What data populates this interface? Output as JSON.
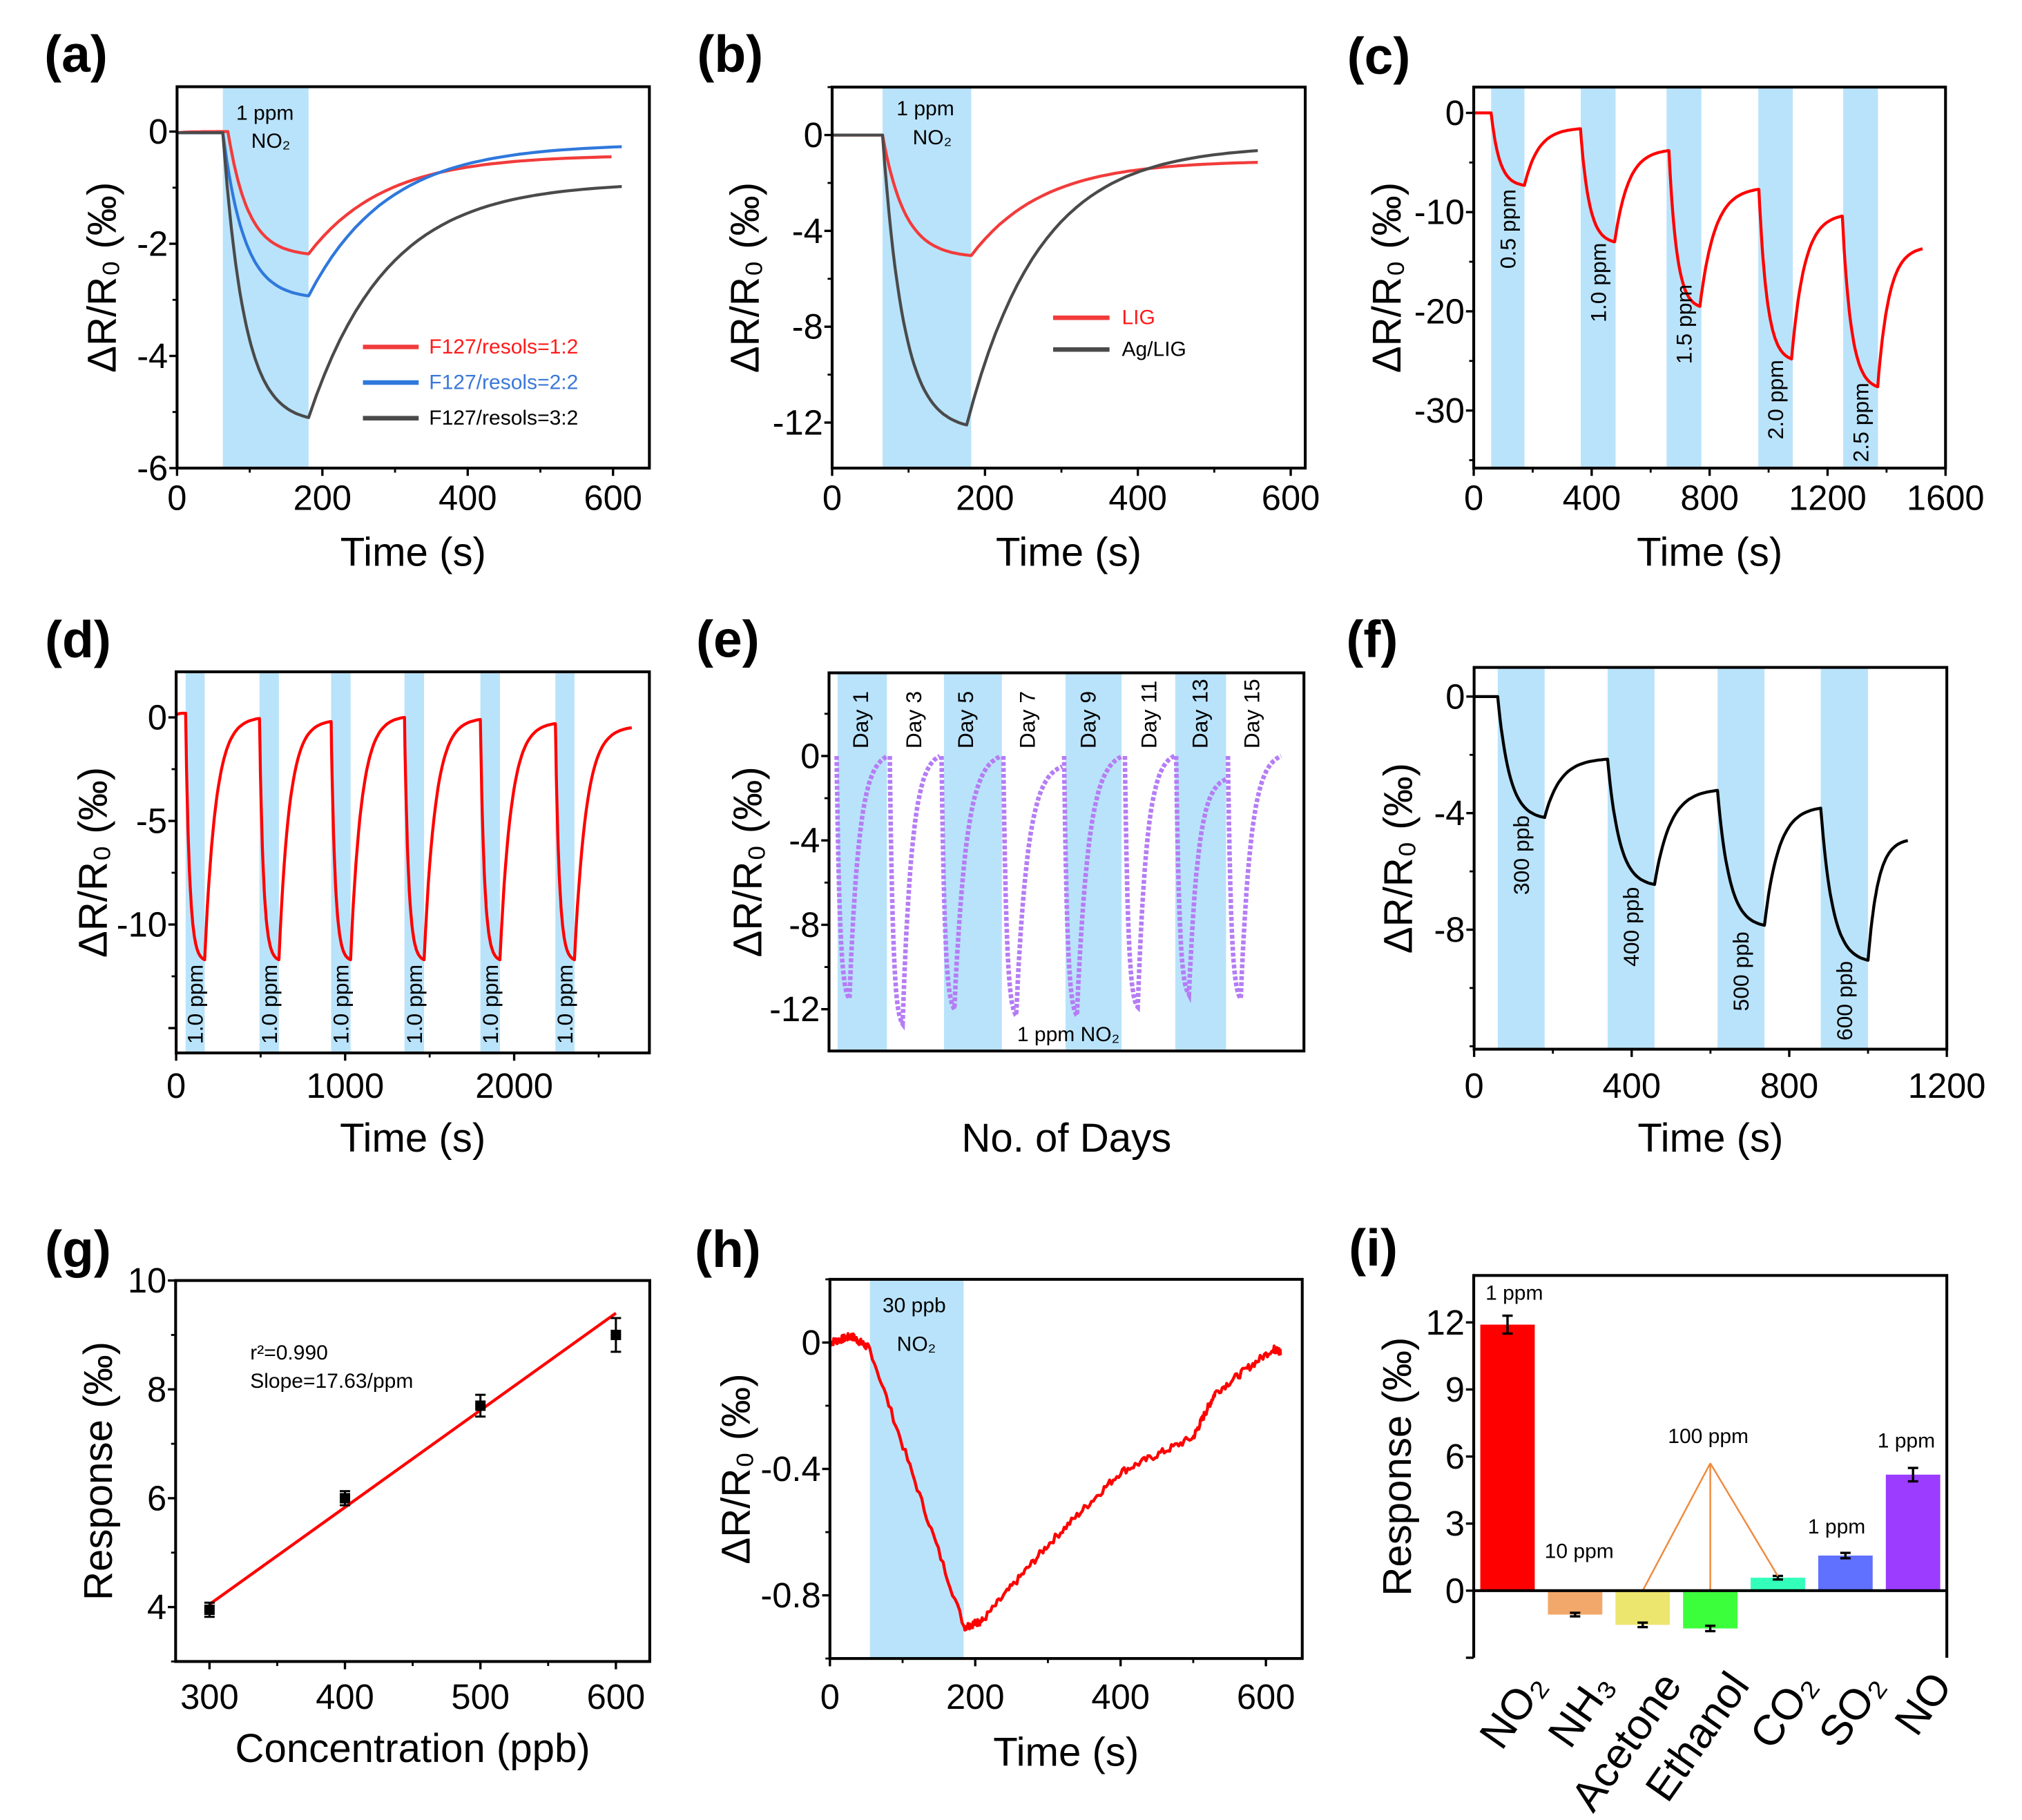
{
  "chart_data": [
    {
      "panel": "(a)",
      "type": "line",
      "xlabel": "Time (s)",
      "ylabel": "ΔR/R₀ (‰)",
      "xlim": [
        0,
        650
      ],
      "ylim": [
        -6,
        0.8
      ],
      "xticks": [
        0,
        200,
        400,
        600
      ],
      "yticks": [
        0,
        -2,
        -4,
        -6
      ],
      "grid": false,
      "legend_placement": "center-right",
      "shaded": [
        {
          "from": 63,
          "to": 181
        }
      ],
      "annotations": [
        {
          "text": "1 ppm",
          "x": 121,
          "y": 0.33
        },
        {
          "text": "NO₂",
          "x": 129,
          "y": -0.17
        }
      ],
      "series": [
        {
          "name": "F127/resols=1:2",
          "color": "#f23b3b",
          "legend_color": "#ff1a1a",
          "points": [
            [
              0,
              -0.02
            ],
            [
              70,
              0
            ],
            [
              181,
              -2.18
            ],
            [
              598,
              -0.45
            ]
          ]
        },
        {
          "name": "F127/resols=2:2",
          "color": "#2f78dc",
          "legend_color": "#3a78d8",
          "points": [
            [
              0,
              -0.02
            ],
            [
              63,
              -0.02
            ],
            [
              181,
              -2.93
            ],
            [
              612,
              -0.27
            ]
          ]
        },
        {
          "name": "F127/resols=3:2",
          "color": "#4a4a4a",
          "legend_color": "#000000",
          "points": [
            [
              0,
              -0.02
            ],
            [
              63,
              -0.02
            ],
            [
              181,
              -5.1
            ],
            [
              612,
              -0.98
            ]
          ]
        }
      ]
    },
    {
      "panel": "(b)",
      "type": "line",
      "xlabel": "Time (s)",
      "ylabel": "ΔR/R₀ (‰)",
      "xlim": [
        0,
        619
      ],
      "ylim": [
        -13.9,
        2
      ],
      "xticks": [
        0,
        200,
        400,
        600
      ],
      "yticks": [
        0,
        -4,
        -8,
        -12
      ],
      "grid": false,
      "legend_placement": "center-right",
      "shaded": [
        {
          "from": 66,
          "to": 182
        }
      ],
      "annotations": [
        {
          "text": "1 ppm",
          "x": 122,
          "y": 1.09
        },
        {
          "text": "NO₂",
          "x": 131,
          "y": -0.11
        }
      ],
      "series": [
        {
          "name": "LIG",
          "color": "#f23b3b",
          "legend_color": "#ff1a1a",
          "points": [
            [
              0,
              0
            ],
            [
              66,
              0
            ],
            [
              182,
              -5.03
            ],
            [
              557,
              -1.14
            ]
          ]
        },
        {
          "name": "Ag/LIG",
          "color": "#4a4a4a",
          "legend_color": "#000000",
          "points": [
            [
              0,
              0
            ],
            [
              66,
              0
            ],
            [
              176,
              -12.1
            ],
            [
              557,
              -0.65
            ]
          ]
        }
      ]
    },
    {
      "panel": "(c)",
      "type": "line",
      "xlabel": "Time (s)",
      "ylabel": "ΔR/R₀ (‰)",
      "xlim": [
        0,
        1600
      ],
      "ylim": [
        -35.8,
        2.6
      ],
      "xticks": [
        0,
        400,
        800,
        1200,
        1600
      ],
      "yticks": [
        0,
        -10,
        -20,
        -30
      ],
      "grid": false,
      "shaded": [
        {
          "from": 59,
          "to": 172,
          "label": "0.5 ppm",
          "label_y": -11.7
        },
        {
          "from": 363,
          "to": 481,
          "label": "1.0 ppm",
          "label_y": -17.1
        },
        {
          "from": 654,
          "to": 772,
          "label": "1.5 ppm",
          "label_y": -21.3
        },
        {
          "from": 965,
          "to": 1082,
          "label": "2.0 ppm",
          "label_y": -28.9
        },
        {
          "from": 1253,
          "to": 1371,
          "label": "2.5 ppm",
          "label_y": -31.2
        }
      ],
      "series": [
        {
          "color": "#ff0000",
          "points": [
            [
              0,
              0
            ],
            [
              59,
              0
            ],
            [
              172,
              -7.3
            ],
            [
              362,
              -1.6
            ],
            [
              478,
              -13.0
            ],
            [
              662,
              -3.8
            ],
            [
              767,
              -19.5
            ],
            [
              967,
              -7.7
            ],
            [
              1078,
              -24.8
            ],
            [
              1250,
              -10.4
            ],
            [
              1370,
              -27.6
            ],
            [
              1522,
              -13.7
            ]
          ]
        }
      ]
    },
    {
      "panel": "(d)",
      "type": "line",
      "xlabel": "Time (s)",
      "ylabel": "ΔR/R₀ (‰)",
      "xlim": [
        0,
        2800
      ],
      "ylim": [
        -16.2,
        2.2
      ],
      "xticks": [
        0,
        1000,
        2000
      ],
      "yticks": [
        0,
        -5,
        -10
      ],
      "grid": false,
      "shaded": [
        {
          "from": 56,
          "to": 169,
          "label": "1.0 ppm",
          "label_y": -13.85
        },
        {
          "from": 493,
          "to": 608,
          "label": "1.0 ppm",
          "label_y": -13.85
        },
        {
          "from": 917,
          "to": 1032,
          "label": "1.0 ppm",
          "label_y": -13.85
        },
        {
          "from": 1351,
          "to": 1467,
          "label": "1.0 ppm",
          "label_y": -13.85
        },
        {
          "from": 1800,
          "to": 1916,
          "label": "1.0 ppm",
          "label_y": -13.85
        },
        {
          "from": 2244,
          "to": 2357,
          "label": "1.0 ppm",
          "label_y": -13.85
        }
      ],
      "series": [
        {
          "color": "#ff0000",
          "points": [
            [
              0,
              0.1
            ],
            [
              56,
              0.2
            ],
            [
              169,
              -11.7
            ],
            [
              493,
              -0.05
            ],
            [
              608,
              -11.7
            ],
            [
              917,
              -0.2
            ],
            [
              1032,
              -11.7
            ],
            [
              1351,
              0
            ],
            [
              1467,
              -11.7
            ],
            [
              1800,
              -0.1
            ],
            [
              1916,
              -11.7
            ],
            [
              2244,
              -0.3
            ],
            [
              2357,
              -11.7
            ],
            [
              2696,
              -0.5
            ]
          ]
        }
      ]
    },
    {
      "panel": "(e)",
      "type": "line",
      "xlabel": "No. of Days",
      "ylabel": "ΔR/R₀ (‰)",
      "xlim": [
        0,
        10
      ],
      "ylim": [
        -13.98,
        3.94
      ],
      "xticks": [],
      "yticks": [
        0,
        -4,
        -8,
        -12
      ],
      "grid": false,
      "line_style": "dotted",
      "shaded": [
        {
          "from": 0.18,
          "to": 1.22
        },
        {
          "from": 2.42,
          "to": 3.64
        },
        {
          "from": 4.98,
          "to": 6.16
        },
        {
          "from": 7.29,
          "to": 8.36
        }
      ],
      "annotations": [
        {
          "text": "1 ppm NO₂",
          "x": 5.04,
          "y": -13.2
        }
      ],
      "days": [
        {
          "label": "Day 1",
          "start": 0.16,
          "min": -11.5,
          "end_value": 0
        },
        {
          "label": "Day 3",
          "start": 1.28,
          "min": -12.7,
          "end_value": 0
        },
        {
          "label": "Day 5",
          "start": 2.37,
          "min": -12.0,
          "end_value": 0
        },
        {
          "label": "Day 7",
          "start": 3.67,
          "min": -12.3,
          "end_value": -0.5
        },
        {
          "label": "Day 9",
          "start": 4.95,
          "min": -12.3,
          "end_value": 0
        },
        {
          "label": "Day 11",
          "start": 6.23,
          "min": -11.9,
          "end_value": 0
        },
        {
          "label": "Day 13",
          "start": 7.31,
          "min": -11.3,
          "end_value": -1.1
        },
        {
          "label": "Day 15",
          "start": 8.4,
          "min": -11.5,
          "end_value": 0
        }
      ],
      "series_end": 9.52,
      "series": [
        {
          "color": "#b57cf5"
        }
      ]
    },
    {
      "panel": "(f)",
      "type": "line",
      "xlabel": "Time (s)",
      "ylabel": "ΔR/R₀ (‰)",
      "xlim": [
        0,
        1200
      ],
      "ylim": [
        -12.1,
        1.0
      ],
      "xticks": [
        0,
        400,
        800,
        1200
      ],
      "yticks": [
        0,
        -4,
        -8
      ],
      "grid": false,
      "shaded": [
        {
          "from": 60,
          "to": 179,
          "label": "300 ppb",
          "label_y": -5.44
        },
        {
          "from": 339,
          "to": 458,
          "label": "400 ppb",
          "label_y": -7.9
        },
        {
          "from": 618,
          "to": 737,
          "label": "500 ppb",
          "label_y": -9.43
        },
        {
          "from": 880,
          "to": 1000,
          "label": "600 ppb",
          "label_y": -10.44
        }
      ],
      "series": [
        {
          "color": "#000000",
          "points": [
            [
              0,
              0
            ],
            [
              60,
              0
            ],
            [
              179,
              -4.15
            ],
            [
              339,
              -2.15
            ],
            [
              458,
              -6.45
            ],
            [
              618,
              -3.22
            ],
            [
              737,
              -7.85
            ],
            [
              880,
              -3.83
            ],
            [
              1000,
              -9.05
            ],
            [
              1101,
              -4.94
            ]
          ]
        }
      ]
    },
    {
      "panel": "(g)",
      "type": "scatter",
      "xlabel": "Concentration (ppb)",
      "ylabel": "Response (‰)",
      "xlim": [
        275,
        625
      ],
      "ylim": [
        3,
        10
      ],
      "xticks": [
        300,
        400,
        500,
        600
      ],
      "yticks": [
        4,
        6,
        8,
        10
      ],
      "grid": false,
      "points": [
        {
          "x": 300,
          "y": 3.95,
          "err": 0.13
        },
        {
          "x": 400,
          "y": 6.0,
          "err": 0.13
        },
        {
          "x": 500,
          "y": 7.7,
          "err": 0.2
        },
        {
          "x": 600,
          "y": 9.0,
          "err": 0.31
        }
      ],
      "fit": {
        "x": [
          300,
          600
        ],
        "y": [
          4.05,
          9.4
        ],
        "color": "#ff0000"
      },
      "annotations": [
        {
          "text": "r²=0.990",
          "x": 330,
          "y": 8.67,
          "align": "start"
        },
        {
          "text": "Slope=17.63/ppm",
          "x": 330,
          "y": 8.15,
          "align": "start"
        }
      ]
    },
    {
      "panel": "(h)",
      "type": "line",
      "xlabel": "Time (s)",
      "ylabel": "ΔR/R₀ (‰)",
      "xlim": [
        0,
        650
      ],
      "ylim": [
        -1.0,
        0.2
      ],
      "xticks": [
        0,
        200,
        400,
        600
      ],
      "yticks": [
        0,
        -0.4,
        -0.8
      ],
      "grid": false,
      "shaded": [
        {
          "from": 55,
          "to": 184
        }
      ],
      "annotations": [
        {
          "text": "30 ppb",
          "x": 116,
          "y": 0.117
        },
        {
          "text": "NO₂",
          "x": 119,
          "y": -0.006
        }
      ],
      "series": [
        {
          "color": "#ff0000",
          "points": [
            [
              0,
              0
            ],
            [
              30,
              0.02
            ],
            [
              55,
              -0.02
            ],
            [
              185,
              -0.9
            ],
            [
              210,
              -0.88
            ],
            [
              300,
              -0.64
            ],
            [
              400,
              -0.41
            ],
            [
              500,
              -0.3
            ],
            [
              530,
              -0.16
            ],
            [
              610,
              -0.02
            ],
            [
              620,
              -0.03
            ]
          ]
        }
      ]
    },
    {
      "panel": "(i)",
      "type": "bar",
      "xlabel": "",
      "ylabel": "Response (‰)",
      "ylim": [
        -3,
        14.1
      ],
      "yticks": [
        0,
        3,
        6,
        9,
        12
      ],
      "grid": false,
      "categories": [
        "NO₂",
        "NH₃",
        "Acetone",
        "Ethanol",
        "CO₂",
        "SO₂",
        "NO"
      ],
      "values": [
        11.9,
        -1.07,
        -1.53,
        -1.69,
        0.58,
        1.57,
        5.19
      ],
      "errors": [
        0.4,
        0.08,
        0.1,
        0.12,
        0.08,
        0.12,
        0.3
      ],
      "colors": [
        "#ff0000",
        "#f2a86a",
        "#ece66e",
        "#3cff3c",
        "#33ffbb",
        "#6070ff",
        "#9b3cff"
      ],
      "annotations": [
        {
          "text": "1 ppm",
          "x": 0.1,
          "y": 13.3
        },
        {
          "text": "10 ppm",
          "x": 1.06,
          "y": 1.75
        },
        {
          "text": "100 ppm",
          "x": 2.97,
          "y": 6.9
        },
        {
          "text": "1 ppm",
          "x": 4.87,
          "y": 2.85
        },
        {
          "text": "1 ppm",
          "x": 5.9,
          "y": 6.7
        }
      ],
      "pointer": {
        "apex": [
          3.0,
          5.7
        ],
        "targets": [
          [
            2,
            0
          ],
          [
            3,
            0
          ],
          [
            4,
            0.65
          ]
        ],
        "color": "#f08a3c"
      }
    }
  ]
}
